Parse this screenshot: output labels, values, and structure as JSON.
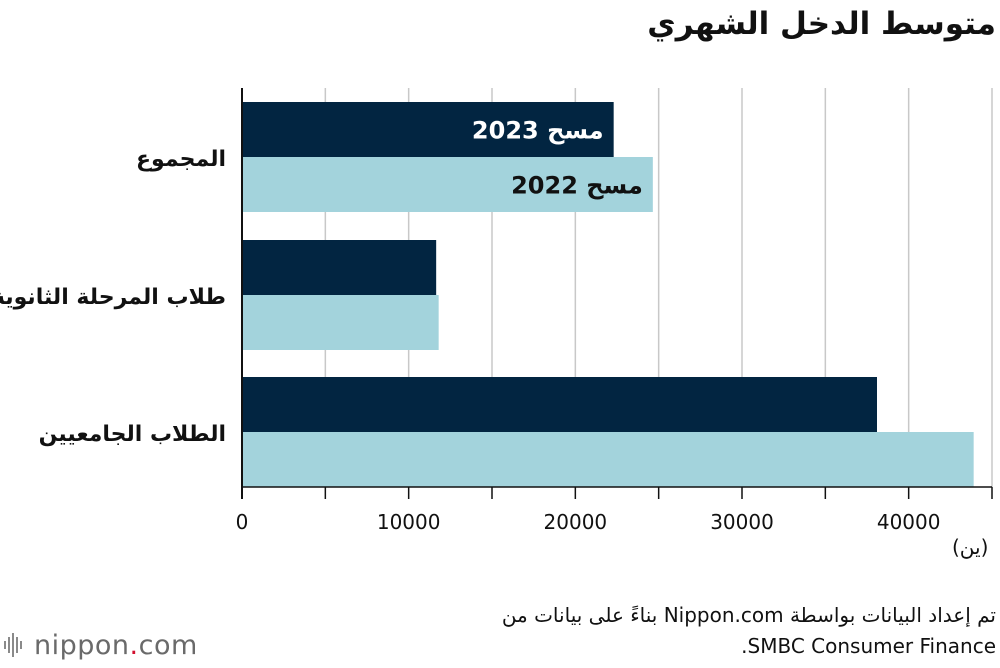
{
  "title": "متوسط الدخل الشهري",
  "unit_label": "(ين)",
  "source_line1": "تم إعداد البيانات بواسطة Nippon.com بناءً على بيانات من",
  "source_line2": "SMBC Consumer Finance.",
  "logo": {
    "part1": "nippon",
    "dot": ".",
    "part2": "com"
  },
  "colors": {
    "series_2023": "#022541",
    "series_2022": "#a3d3dc",
    "grid": "#c8c8c8",
    "axis": "#111111"
  },
  "chart_data": {
    "type": "bar",
    "orientation": "horizontal",
    "categories": [
      "المجموع",
      "طلاب المرحلة الثانوية",
      "الطلاب الجامعيين"
    ],
    "series": [
      {
        "name": "مسح 2023",
        "values": [
          22300,
          11650,
          38100
        ]
      },
      {
        "name": "مسح 2022",
        "values": [
          24650,
          11800,
          43900
        ]
      }
    ],
    "xlim": [
      0,
      45000
    ],
    "xticks": [
      0,
      10000,
      20000,
      30000,
      40000
    ],
    "grid": true,
    "legend": "inline labels on first category bars"
  }
}
